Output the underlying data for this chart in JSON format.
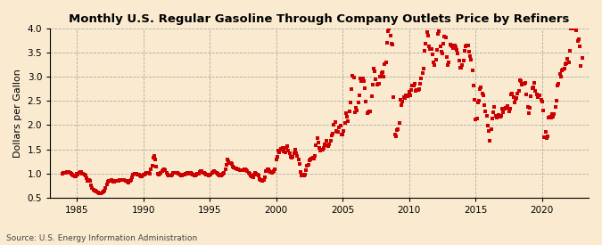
{
  "title": "Monthly U.S. Regular Gasoline Through Company Outlets Price by Refiners",
  "ylabel": "Dollars per Gallon",
  "source": "Source: U.S. Energy Information Administration",
  "background_color": "#faebd0",
  "plot_bg_color": "#faebd0",
  "marker_color": "#cc0000",
  "xlim_start": 1983.0,
  "xlim_end": 2023.5,
  "ylim": [
    0.5,
    4.0
  ],
  "yticks": [
    0.5,
    1.0,
    1.5,
    2.0,
    2.5,
    3.0,
    3.5,
    4.0
  ],
  "xticks": [
    1985,
    1990,
    1995,
    2000,
    2005,
    2010,
    2015,
    2020
  ],
  "data": [
    [
      1983.917,
      1.001
    ],
    [
      1984.0,
      1.006
    ],
    [
      1984.083,
      1.013
    ],
    [
      1984.167,
      1.013
    ],
    [
      1984.25,
      1.026
    ],
    [
      1984.333,
      1.034
    ],
    [
      1984.417,
      1.029
    ],
    [
      1984.5,
      1.012
    ],
    [
      1984.583,
      0.994
    ],
    [
      1984.667,
      0.976
    ],
    [
      1984.75,
      0.948
    ],
    [
      1984.833,
      0.938
    ],
    [
      1984.917,
      0.931
    ],
    [
      1985.0,
      0.998
    ],
    [
      1985.083,
      0.981
    ],
    [
      1985.167,
      1.006
    ],
    [
      1985.25,
      1.028
    ],
    [
      1985.333,
      1.021
    ],
    [
      1985.417,
      1.001
    ],
    [
      1985.5,
      0.989
    ],
    [
      1985.583,
      0.974
    ],
    [
      1985.667,
      0.952
    ],
    [
      1985.75,
      0.894
    ],
    [
      1985.833,
      0.854
    ],
    [
      1985.917,
      0.864
    ],
    [
      1986.0,
      0.84
    ],
    [
      1986.083,
      0.76
    ],
    [
      1986.167,
      0.7
    ],
    [
      1986.25,
      0.66
    ],
    [
      1986.333,
      0.64
    ],
    [
      1986.417,
      0.64
    ],
    [
      1986.5,
      0.63
    ],
    [
      1986.583,
      0.6
    ],
    [
      1986.667,
      0.59
    ],
    [
      1986.75,
      0.59
    ],
    [
      1986.833,
      0.59
    ],
    [
      1986.917,
      0.6
    ],
    [
      1987.0,
      0.62
    ],
    [
      1987.083,
      0.65
    ],
    [
      1987.167,
      0.7
    ],
    [
      1987.25,
      0.78
    ],
    [
      1987.333,
      0.83
    ],
    [
      1987.417,
      0.84
    ],
    [
      1987.5,
      0.85
    ],
    [
      1987.583,
      0.86
    ],
    [
      1987.667,
      0.85
    ],
    [
      1987.75,
      0.83
    ],
    [
      1987.833,
      0.82
    ],
    [
      1987.917,
      0.84
    ],
    [
      1988.0,
      0.85
    ],
    [
      1988.083,
      0.85
    ],
    [
      1988.167,
      0.85
    ],
    [
      1988.25,
      0.86
    ],
    [
      1988.333,
      0.87
    ],
    [
      1988.417,
      0.87
    ],
    [
      1988.5,
      0.87
    ],
    [
      1988.583,
      0.86
    ],
    [
      1988.667,
      0.85
    ],
    [
      1988.75,
      0.84
    ],
    [
      1988.833,
      0.82
    ],
    [
      1988.917,
      0.81
    ],
    [
      1989.0,
      0.84
    ],
    [
      1989.083,
      0.87
    ],
    [
      1989.167,
      0.92
    ],
    [
      1989.25,
      0.97
    ],
    [
      1989.333,
      0.99
    ],
    [
      1989.417,
      1.0
    ],
    [
      1989.5,
      0.99
    ],
    [
      1989.583,
      0.98
    ],
    [
      1989.667,
      0.97
    ],
    [
      1989.75,
      0.95
    ],
    [
      1989.833,
      0.93
    ],
    [
      1989.917,
      0.94
    ],
    [
      1990.0,
      0.97
    ],
    [
      1990.083,
      0.98
    ],
    [
      1990.167,
      1.0
    ],
    [
      1990.25,
      1.01
    ],
    [
      1990.333,
      1.02
    ],
    [
      1990.417,
      1.01
    ],
    [
      1990.5,
      1.0
    ],
    [
      1990.583,
      1.09
    ],
    [
      1990.667,
      1.15
    ],
    [
      1990.75,
      1.33
    ],
    [
      1990.833,
      1.37
    ],
    [
      1990.917,
      1.28
    ],
    [
      1991.0,
      1.14
    ],
    [
      1991.083,
      0.99
    ],
    [
      1991.167,
      0.98
    ],
    [
      1991.25,
      0.99
    ],
    [
      1991.333,
      1.01
    ],
    [
      1991.417,
      1.05
    ],
    [
      1991.5,
      1.07
    ],
    [
      1991.583,
      1.09
    ],
    [
      1991.667,
      1.07
    ],
    [
      1991.75,
      1.02
    ],
    [
      1991.833,
      0.98
    ],
    [
      1991.917,
      0.96
    ],
    [
      1992.0,
      0.95
    ],
    [
      1992.083,
      0.95
    ],
    [
      1992.167,
      0.98
    ],
    [
      1992.25,
      1.01
    ],
    [
      1992.333,
      1.02
    ],
    [
      1992.417,
      1.01
    ],
    [
      1992.5,
      1.02
    ],
    [
      1992.583,
      1.02
    ],
    [
      1992.667,
      1.0
    ],
    [
      1992.75,
      0.98
    ],
    [
      1992.833,
      0.96
    ],
    [
      1992.917,
      0.95
    ],
    [
      1993.0,
      0.97
    ],
    [
      1993.083,
      0.98
    ],
    [
      1993.167,
      0.99
    ],
    [
      1993.25,
      1.0
    ],
    [
      1993.333,
      1.01
    ],
    [
      1993.417,
      1.0
    ],
    [
      1993.5,
      1.0
    ],
    [
      1993.583,
      1.01
    ],
    [
      1993.667,
      0.99
    ],
    [
      1993.75,
      0.97
    ],
    [
      1993.833,
      0.96
    ],
    [
      1993.917,
      0.96
    ],
    [
      1994.0,
      0.98
    ],
    [
      1994.083,
      1.0
    ],
    [
      1994.167,
      1.0
    ],
    [
      1994.25,
      1.03
    ],
    [
      1994.333,
      1.05
    ],
    [
      1994.417,
      1.04
    ],
    [
      1994.5,
      1.02
    ],
    [
      1994.583,
      1.02
    ],
    [
      1994.667,
      1.0
    ],
    [
      1994.75,
      0.97
    ],
    [
      1994.833,
      0.97
    ],
    [
      1994.917,
      0.96
    ],
    [
      1995.0,
      0.98
    ],
    [
      1995.083,
      0.98
    ],
    [
      1995.167,
      1.02
    ],
    [
      1995.25,
      1.03
    ],
    [
      1995.333,
      1.04
    ],
    [
      1995.417,
      1.03
    ],
    [
      1995.5,
      1.01
    ],
    [
      1995.583,
      0.99
    ],
    [
      1995.667,
      0.97
    ],
    [
      1995.75,
      0.96
    ],
    [
      1995.833,
      0.96
    ],
    [
      1995.917,
      0.97
    ],
    [
      1996.0,
      0.99
    ],
    [
      1996.083,
      1.01
    ],
    [
      1996.167,
      1.09
    ],
    [
      1996.25,
      1.17
    ],
    [
      1996.333,
      1.28
    ],
    [
      1996.417,
      1.26
    ],
    [
      1996.5,
      1.22
    ],
    [
      1996.583,
      1.22
    ],
    [
      1996.667,
      1.19
    ],
    [
      1996.75,
      1.14
    ],
    [
      1996.833,
      1.12
    ],
    [
      1996.917,
      1.1
    ],
    [
      1997.0,
      1.1
    ],
    [
      1997.083,
      1.09
    ],
    [
      1997.167,
      1.08
    ],
    [
      1997.25,
      1.07
    ],
    [
      1997.333,
      1.06
    ],
    [
      1997.417,
      1.07
    ],
    [
      1997.5,
      1.07
    ],
    [
      1997.583,
      1.09
    ],
    [
      1997.667,
      1.08
    ],
    [
      1997.75,
      1.06
    ],
    [
      1997.833,
      1.04
    ],
    [
      1997.917,
      1.01
    ],
    [
      1998.0,
      1.0
    ],
    [
      1998.083,
      0.96
    ],
    [
      1998.167,
      0.94
    ],
    [
      1998.25,
      0.92
    ],
    [
      1998.333,
      0.98
    ],
    [
      1998.417,
      1.01
    ],
    [
      1998.5,
      1.0
    ],
    [
      1998.583,
      0.98
    ],
    [
      1998.667,
      0.95
    ],
    [
      1998.75,
      0.89
    ],
    [
      1998.833,
      0.86
    ],
    [
      1998.917,
      0.85
    ],
    [
      1999.0,
      0.86
    ],
    [
      1999.083,
      0.87
    ],
    [
      1999.167,
      0.92
    ],
    [
      1999.25,
      1.05
    ],
    [
      1999.333,
      1.09
    ],
    [
      1999.417,
      1.09
    ],
    [
      1999.5,
      1.05
    ],
    [
      1999.583,
      1.03
    ],
    [
      1999.667,
      1.01
    ],
    [
      1999.75,
      1.03
    ],
    [
      1999.833,
      1.04
    ],
    [
      1999.917,
      1.08
    ],
    [
      2000.0,
      1.28
    ],
    [
      2000.083,
      1.35
    ],
    [
      2000.167,
      1.47
    ],
    [
      2000.25,
      1.44
    ],
    [
      2000.333,
      1.51
    ],
    [
      2000.417,
      1.5
    ],
    [
      2000.5,
      1.52
    ],
    [
      2000.583,
      1.45
    ],
    [
      2000.667,
      1.44
    ],
    [
      2000.75,
      1.53
    ],
    [
      2000.833,
      1.57
    ],
    [
      2000.917,
      1.47
    ],
    [
      2001.0,
      1.42
    ],
    [
      2001.083,
      1.35
    ],
    [
      2001.167,
      1.32
    ],
    [
      2001.25,
      1.35
    ],
    [
      2001.333,
      1.42
    ],
    [
      2001.417,
      1.49
    ],
    [
      2001.5,
      1.42
    ],
    [
      2001.583,
      1.37
    ],
    [
      2001.667,
      1.28
    ],
    [
      2001.75,
      1.19
    ],
    [
      2001.833,
      1.03
    ],
    [
      2001.917,
      0.95
    ],
    [
      2002.0,
      0.98
    ],
    [
      2002.083,
      0.96
    ],
    [
      2002.167,
      0.97
    ],
    [
      2002.25,
      1.06
    ],
    [
      2002.333,
      1.15
    ],
    [
      2002.417,
      1.17
    ],
    [
      2002.5,
      1.27
    ],
    [
      2002.583,
      1.28
    ],
    [
      2002.667,
      1.3
    ],
    [
      2002.75,
      1.33
    ],
    [
      2002.833,
      1.31
    ],
    [
      2002.917,
      1.37
    ],
    [
      2003.0,
      1.59
    ],
    [
      2003.083,
      1.73
    ],
    [
      2003.167,
      1.64
    ],
    [
      2003.25,
      1.53
    ],
    [
      2003.333,
      1.48
    ],
    [
      2003.417,
      1.49
    ],
    [
      2003.5,
      1.5
    ],
    [
      2003.583,
      1.53
    ],
    [
      2003.667,
      1.61
    ],
    [
      2003.75,
      1.67
    ],
    [
      2003.833,
      1.58
    ],
    [
      2003.917,
      1.57
    ],
    [
      2004.0,
      1.61
    ],
    [
      2004.083,
      1.68
    ],
    [
      2004.167,
      1.78
    ],
    [
      2004.25,
      1.82
    ],
    [
      2004.333,
      2.01
    ],
    [
      2004.417,
      2.07
    ],
    [
      2004.5,
      1.88
    ],
    [
      2004.583,
      1.86
    ],
    [
      2004.667,
      1.86
    ],
    [
      2004.75,
      1.95
    ],
    [
      2004.833,
      1.98
    ],
    [
      2004.917,
      1.81
    ],
    [
      2005.0,
      1.81
    ],
    [
      2005.083,
      1.88
    ],
    [
      2005.167,
      2.04
    ],
    [
      2005.25,
      2.24
    ],
    [
      2005.333,
      2.17
    ],
    [
      2005.417,
      2.09
    ],
    [
      2005.5,
      2.29
    ],
    [
      2005.583,
      2.46
    ],
    [
      2005.667,
      2.75
    ],
    [
      2005.75,
      3.03
    ],
    [
      2005.833,
      2.98
    ],
    [
      2005.917,
      2.27
    ],
    [
      2006.0,
      2.35
    ],
    [
      2006.083,
      2.31
    ],
    [
      2006.167,
      2.46
    ],
    [
      2006.25,
      2.61
    ],
    [
      2006.333,
      2.96
    ],
    [
      2006.417,
      2.91
    ],
    [
      2006.5,
      2.97
    ],
    [
      2006.583,
      2.91
    ],
    [
      2006.667,
      2.76
    ],
    [
      2006.75,
      2.48
    ],
    [
      2006.833,
      2.25
    ],
    [
      2006.917,
      2.26
    ],
    [
      2007.0,
      2.28
    ],
    [
      2007.083,
      2.28
    ],
    [
      2007.167,
      2.59
    ],
    [
      2007.25,
      2.83
    ],
    [
      2007.333,
      3.16
    ],
    [
      2007.417,
      3.12
    ],
    [
      2007.5,
      2.95
    ],
    [
      2007.583,
      2.83
    ],
    [
      2007.667,
      2.85
    ],
    [
      2007.75,
      2.86
    ],
    [
      2007.833,
      3.01
    ],
    [
      2007.917,
      3.08
    ],
    [
      2008.0,
      3.09
    ],
    [
      2008.083,
      3.01
    ],
    [
      2008.167,
      3.26
    ],
    [
      2008.25,
      3.29
    ],
    [
      2008.333,
      3.71
    ],
    [
      2008.417,
      3.95
    ],
    [
      2008.5,
      4.0
    ],
    [
      2008.583,
      3.86
    ],
    [
      2008.667,
      3.68
    ],
    [
      2008.75,
      3.66
    ],
    [
      2008.833,
      2.57
    ],
    [
      2008.917,
      1.81
    ],
    [
      2009.0,
      1.77
    ],
    [
      2009.083,
      1.89
    ],
    [
      2009.167,
      1.91
    ],
    [
      2009.25,
      2.04
    ],
    [
      2009.333,
      2.52
    ],
    [
      2009.417,
      2.42
    ],
    [
      2009.5,
      2.48
    ],
    [
      2009.583,
      2.58
    ],
    [
      2009.667,
      2.56
    ],
    [
      2009.75,
      2.62
    ],
    [
      2009.833,
      2.62
    ],
    [
      2009.917,
      2.59
    ],
    [
      2010.0,
      2.69
    ],
    [
      2010.083,
      2.61
    ],
    [
      2010.167,
      2.73
    ],
    [
      2010.25,
      2.81
    ],
    [
      2010.333,
      2.81
    ],
    [
      2010.417,
      2.86
    ],
    [
      2010.5,
      2.71
    ],
    [
      2010.583,
      2.73
    ],
    [
      2010.667,
      2.72
    ],
    [
      2010.75,
      2.75
    ],
    [
      2010.833,
      2.86
    ],
    [
      2010.917,
      2.97
    ],
    [
      2011.0,
      3.07
    ],
    [
      2011.083,
      3.17
    ],
    [
      2011.167,
      3.53
    ],
    [
      2011.25,
      3.69
    ],
    [
      2011.333,
      3.92
    ],
    [
      2011.417,
      3.86
    ],
    [
      2011.5,
      3.63
    ],
    [
      2011.583,
      3.58
    ],
    [
      2011.667,
      3.57
    ],
    [
      2011.75,
      3.46
    ],
    [
      2011.833,
      3.29
    ],
    [
      2011.917,
      3.24
    ],
    [
      2012.0,
      3.36
    ],
    [
      2012.083,
      3.56
    ],
    [
      2012.167,
      3.88
    ],
    [
      2012.25,
      3.94
    ],
    [
      2012.333,
      3.63
    ],
    [
      2012.417,
      3.52
    ],
    [
      2012.5,
      3.49
    ],
    [
      2012.583,
      3.69
    ],
    [
      2012.667,
      3.84
    ],
    [
      2012.75,
      3.82
    ],
    [
      2012.833,
      3.4
    ],
    [
      2012.917,
      3.24
    ],
    [
      2013.0,
      3.29
    ],
    [
      2013.083,
      3.67
    ],
    [
      2013.167,
      3.65
    ],
    [
      2013.25,
      3.63
    ],
    [
      2013.333,
      3.6
    ],
    [
      2013.417,
      3.64
    ],
    [
      2013.5,
      3.61
    ],
    [
      2013.583,
      3.56
    ],
    [
      2013.667,
      3.49
    ],
    [
      2013.75,
      3.33
    ],
    [
      2013.833,
      3.18
    ],
    [
      2013.917,
      3.18
    ],
    [
      2014.0,
      3.24
    ],
    [
      2014.083,
      3.34
    ],
    [
      2014.167,
      3.53
    ],
    [
      2014.25,
      3.63
    ],
    [
      2014.333,
      3.64
    ],
    [
      2014.417,
      3.64
    ],
    [
      2014.5,
      3.52
    ],
    [
      2014.583,
      3.43
    ],
    [
      2014.667,
      3.36
    ],
    [
      2014.75,
      3.14
    ],
    [
      2014.833,
      2.82
    ],
    [
      2014.917,
      2.53
    ],
    [
      2015.0,
      2.11
    ],
    [
      2015.083,
      2.13
    ],
    [
      2015.167,
      2.46
    ],
    [
      2015.25,
      2.51
    ],
    [
      2015.333,
      2.74
    ],
    [
      2015.417,
      2.79
    ],
    [
      2015.5,
      2.65
    ],
    [
      2015.583,
      2.62
    ],
    [
      2015.667,
      2.41
    ],
    [
      2015.75,
      2.28
    ],
    [
      2015.833,
      2.2
    ],
    [
      2015.917,
      1.99
    ],
    [
      2016.0,
      1.87
    ],
    [
      2016.083,
      1.67
    ],
    [
      2016.167,
      1.92
    ],
    [
      2016.25,
      2.13
    ],
    [
      2016.333,
      2.27
    ],
    [
      2016.417,
      2.38
    ],
    [
      2016.5,
      2.2
    ],
    [
      2016.583,
      2.16
    ],
    [
      2016.667,
      2.17
    ],
    [
      2016.75,
      2.21
    ],
    [
      2016.833,
      2.17
    ],
    [
      2016.917,
      2.2
    ],
    [
      2017.0,
      2.33
    ],
    [
      2017.083,
      2.27
    ],
    [
      2017.167,
      2.34
    ],
    [
      2017.25,
      2.35
    ],
    [
      2017.333,
      2.35
    ],
    [
      2017.417,
      2.4
    ],
    [
      2017.5,
      2.28
    ],
    [
      2017.583,
      2.34
    ],
    [
      2017.667,
      2.63
    ],
    [
      2017.75,
      2.65
    ],
    [
      2017.833,
      2.58
    ],
    [
      2017.917,
      2.46
    ],
    [
      2018.0,
      2.55
    ],
    [
      2018.083,
      2.56
    ],
    [
      2018.167,
      2.66
    ],
    [
      2018.25,
      2.71
    ],
    [
      2018.333,
      2.93
    ],
    [
      2018.417,
      2.92
    ],
    [
      2018.5,
      2.84
    ],
    [
      2018.583,
      2.85
    ],
    [
      2018.667,
      2.86
    ],
    [
      2018.75,
      2.87
    ],
    [
      2018.833,
      2.64
    ],
    [
      2018.917,
      2.37
    ],
    [
      2019.0,
      2.25
    ],
    [
      2019.083,
      2.35
    ],
    [
      2019.167,
      2.6
    ],
    [
      2019.25,
      2.76
    ],
    [
      2019.333,
      2.79
    ],
    [
      2019.417,
      2.87
    ],
    [
      2019.5,
      2.7
    ],
    [
      2019.583,
      2.64
    ],
    [
      2019.667,
      2.57
    ],
    [
      2019.75,
      2.61
    ],
    [
      2019.833,
      2.62
    ],
    [
      2019.917,
      2.53
    ],
    [
      2020.0,
      2.49
    ],
    [
      2020.083,
      2.3
    ],
    [
      2020.167,
      1.75
    ],
    [
      2020.25,
      1.86
    ],
    [
      2020.333,
      1.73
    ],
    [
      2020.417,
      1.77
    ],
    [
      2020.5,
      2.15
    ],
    [
      2020.583,
      2.17
    ],
    [
      2020.667,
      2.16
    ],
    [
      2020.75,
      2.22
    ],
    [
      2020.833,
      2.18
    ],
    [
      2020.917,
      2.22
    ],
    [
      2021.0,
      2.38
    ],
    [
      2021.083,
      2.51
    ],
    [
      2021.167,
      2.81
    ],
    [
      2021.25,
      2.86
    ],
    [
      2021.333,
      3.05
    ],
    [
      2021.417,
      3.01
    ],
    [
      2021.5,
      3.13
    ],
    [
      2021.583,
      3.15
    ],
    [
      2021.667,
      3.16
    ],
    [
      2021.75,
      3.26
    ],
    [
      2021.833,
      3.28
    ],
    [
      2021.917,
      3.38
    ],
    [
      2022.0,
      3.3
    ],
    [
      2022.083,
      3.54
    ],
    [
      2022.167,
      4.0
    ],
    [
      2022.25,
      4.0
    ],
    [
      2022.333,
      4.0
    ],
    [
      2022.417,
      4.0
    ],
    [
      2022.5,
      4.0
    ],
    [
      2022.583,
      3.96
    ],
    [
      2022.667,
      3.74
    ],
    [
      2022.75,
      3.77
    ],
    [
      2022.833,
      3.63
    ],
    [
      2022.917,
      3.22
    ],
    [
      2023.0,
      3.39
    ]
  ]
}
